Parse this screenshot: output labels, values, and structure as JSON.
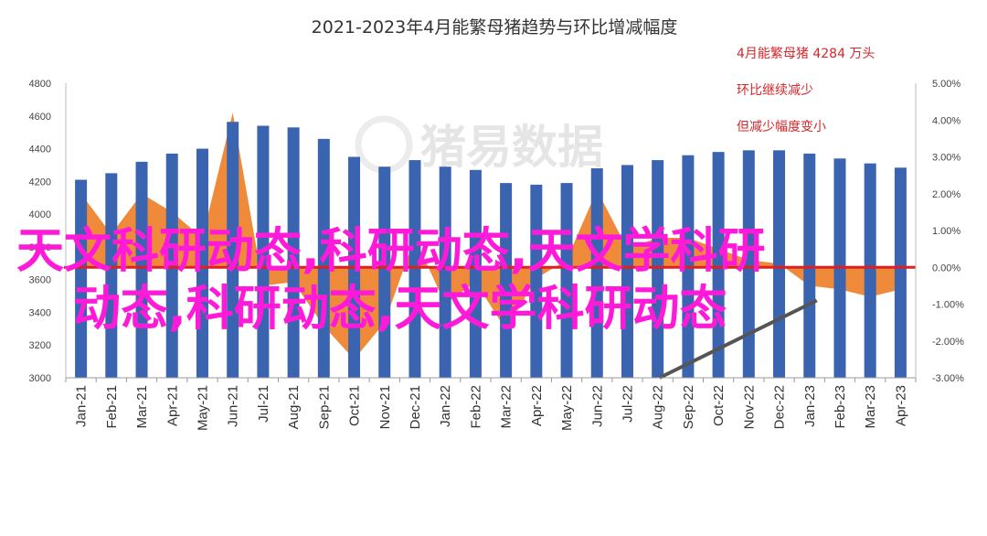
{
  "chart_data": {
    "type": "bar",
    "title": "2021-2023年4月能繁母猪趋势与环比增减幅度",
    "categories": [
      "Jan-21",
      "Feb-21",
      "Mar-21",
      "Apr-21",
      "May-21",
      "Jun-21",
      "Jul-21",
      "Aug-21",
      "Sep-21",
      "Oct-21",
      "Nov-21",
      "Dec-21",
      "Jan-22",
      "Feb-22",
      "Mar-22",
      "Apr-22",
      "May-22",
      "Jun-22",
      "Jul-22",
      "Aug-22",
      "Sep-22",
      "Oct-22",
      "Nov-22",
      "Dec-22",
      "Jan-23",
      "Feb-23",
      "Mar-23",
      "Apr-23"
    ],
    "bar_series": {
      "values": [
        4210,
        4250,
        4320,
        4370,
        4400,
        4564,
        4540,
        4530,
        4460,
        4350,
        4290,
        4330,
        4290,
        4270,
        4190,
        4180,
        4190,
        4280,
        4300,
        4330,
        4360,
        4380,
        4390,
        4390,
        4370,
        4340,
        4310,
        4284
      ],
      "color": "#3a63b0"
    },
    "area_series": {
      "values": [
        2.0,
        0.9,
        2.0,
        1.5,
        0.8,
        4.2,
        -0.5,
        -0.4,
        -1.6,
        -2.5,
        -1.5,
        0.8,
        -1.0,
        -0.4,
        -1.7,
        -0.3,
        0.2,
        2.1,
        0.5,
        0.8,
        0.8,
        0.5,
        0.2,
        0.1,
        -0.5,
        -0.6,
        -0.8,
        -0.6
      ],
      "color": "#ee8a3a"
    },
    "y_left": {
      "min": 3000,
      "max": 4800,
      "ticks": [
        "3000",
        "3200",
        "3400",
        "3600",
        "3800",
        "4000",
        "4200",
        "4400",
        "4600",
        "4800"
      ]
    },
    "y_right": {
      "min": -3.0,
      "max": 5.0,
      "ticks": [
        "-3.00%",
        "-2.00%",
        "-1.00%",
        "0.00%",
        "1.00%",
        "2.00%",
        "3.00%",
        "4.00%",
        "5.00%"
      ]
    },
    "annotations": [
      "4月能繁母猪 4284 万头",
      "环比继续减少",
      "但减少幅度变小"
    ],
    "zero_line_color": "#e02020",
    "trend_line_color": "#555555",
    "watermark": "猪易数据",
    "overlay_lines": [
      "天文科研动态,科研动态,天文学科研",
      "动态,科研动态,天文学科研动态"
    ],
    "overlay_color": "#ff1ad9"
  }
}
